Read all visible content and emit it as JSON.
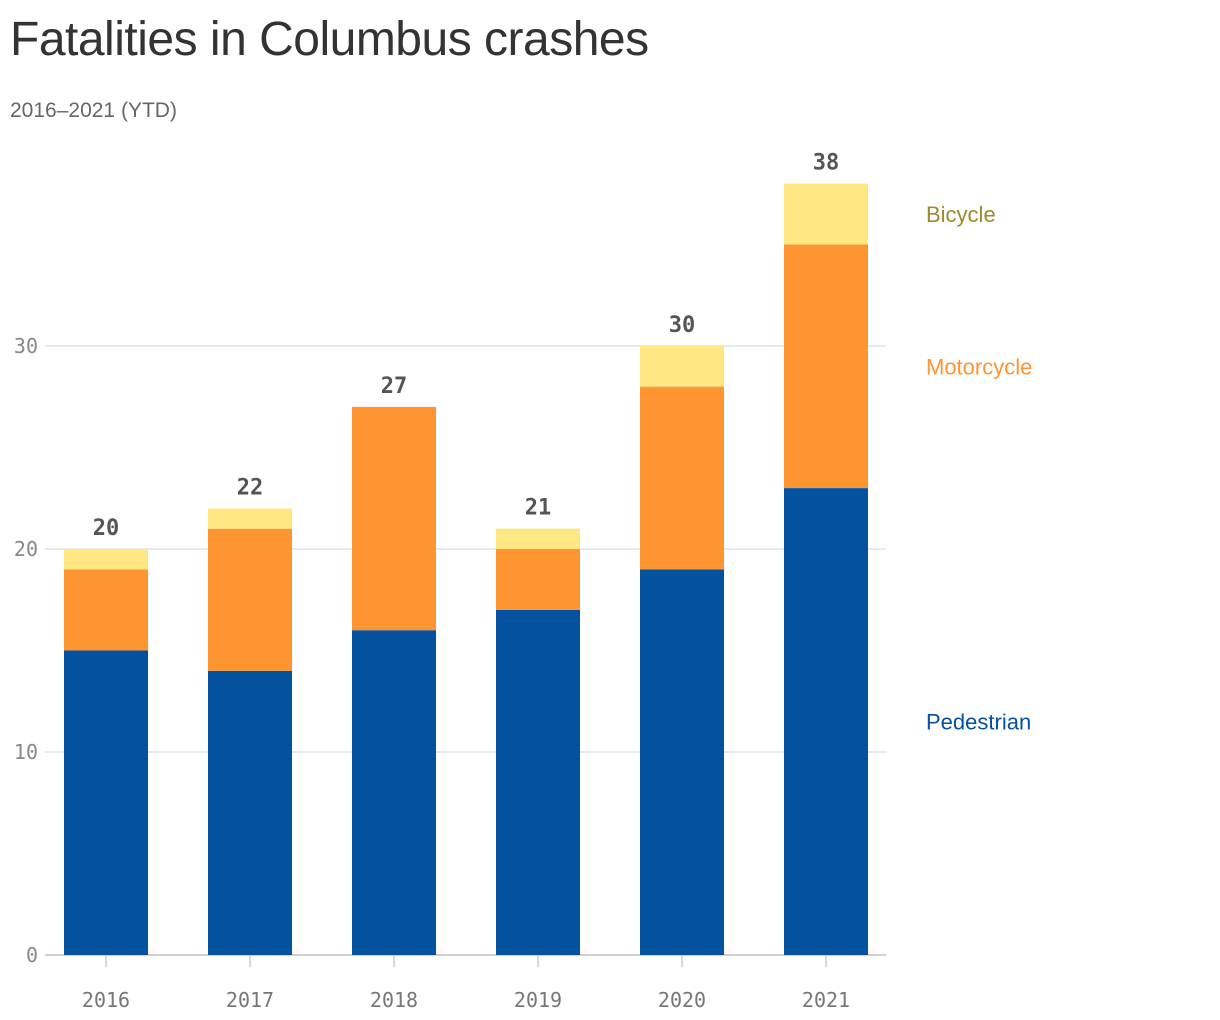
{
  "chart_data": {
    "type": "bar",
    "stacked": true,
    "title": "Fatalities in Columbus crashes",
    "subtitle": "2016–2021 (YTD)",
    "xlabel": "",
    "ylabel": "",
    "categories": [
      "2016",
      "2017",
      "2018",
      "2019",
      "2020",
      "2021"
    ],
    "series": [
      {
        "name": "Pedestrian",
        "color": "#04519f",
        "label_color": "#04519f",
        "values": [
          15,
          14,
          16,
          17,
          19,
          23
        ]
      },
      {
        "name": "Motorcycle",
        "color": "#ff9530",
        "label_color": "#ff9530",
        "values": [
          4,
          7,
          11,
          3,
          9,
          12
        ]
      },
      {
        "name": "Bicycle",
        "color": "#ffe784",
        "label_color": "#9d8a2d",
        "values": [
          1,
          1,
          0,
          1,
          2,
          3
        ]
      }
    ],
    "totals": [
      20,
      22,
      27,
      21,
      30,
      38
    ],
    "ylim": [
      0,
      38
    ],
    "yticks": [
      0,
      10,
      20,
      30
    ],
    "grid": true,
    "legend": "right"
  }
}
